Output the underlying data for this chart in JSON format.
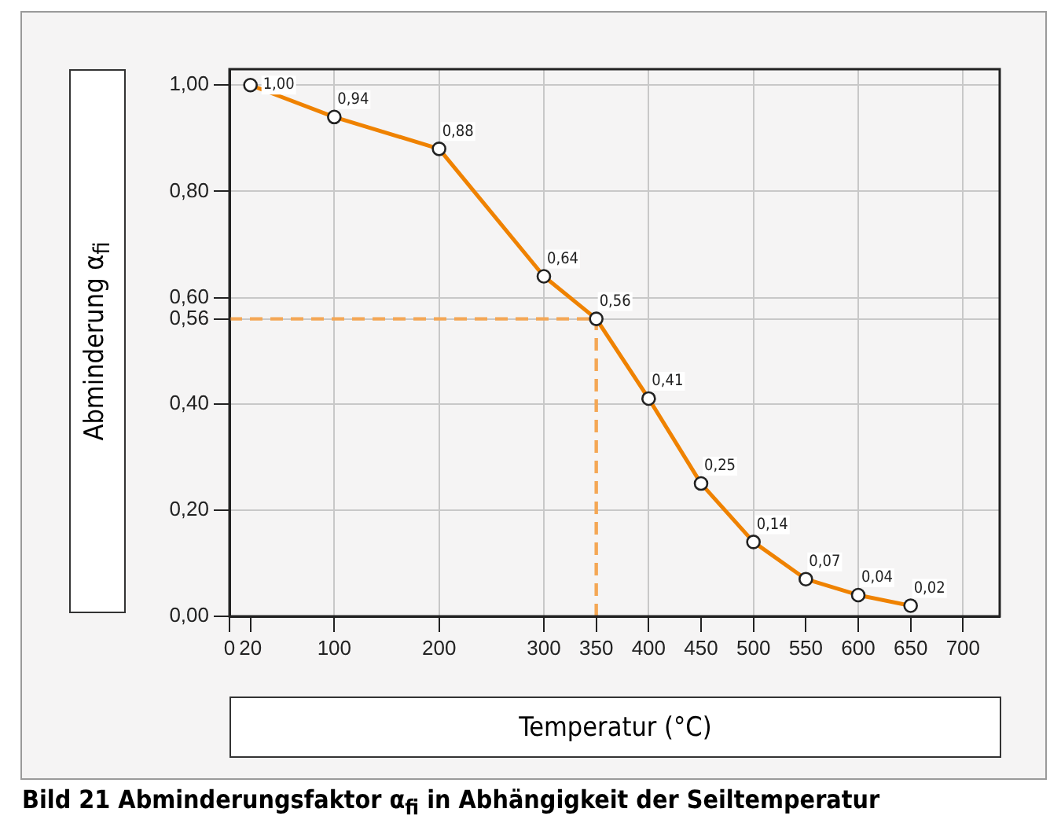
{
  "chart_data": {
    "type": "line",
    "title": "Bild 21  Abminderungsfaktor α$_{fi}$ in Abhängigkeit der Seiltemperatur",
    "xlabel": "Temperatur (°C)",
    "ylabel": "Abminderung α$_{fi}$",
    "x": [
      20,
      100,
      200,
      300,
      350,
      400,
      450,
      500,
      550,
      600,
      650
    ],
    "series": [
      {
        "color": "#ef8200",
        "values": [
          1.0,
          0.94,
          0.88,
          0.64,
          0.56,
          0.41,
          0.25,
          0.14,
          0.07,
          0.04,
          0.02
        ],
        "value_labels": [
          "1,00",
          "0,94",
          "0,88",
          "0,64",
          "0,56",
          "0,41",
          "0,25",
          "0,14",
          "0,07",
          "0,04",
          "0,02"
        ]
      }
    ],
    "xlim": [
      0,
      735
    ],
    "ylim": [
      0,
      1.03
    ],
    "xticks": [
      0,
      {
        "value": 20,
        "label": "20"
      },
      100,
      200,
      300,
      {
        "value": 350,
        "label": "350"
      },
      400,
      {
        "value": 450,
        "label": "450"
      },
      500,
      {
        "value": 550,
        "label": "550"
      },
      600,
      {
        "value": 650,
        "label": "650"
      },
      700
    ],
    "yticks": [
      {
        "value": 0,
        "label": "0,00"
      },
      {
        "value": 0.2,
        "label": "0,20"
      },
      {
        "value": 0.4,
        "label": "0,40"
      },
      {
        "value": 0.56,
        "label": "0,56"
      },
      {
        "value": 0.6,
        "label": "0,60"
      },
      {
        "value": 0.8,
        "label": "0,80"
      },
      {
        "value": 1,
        "label": "1,00"
      }
    ],
    "ref_lines": [
      {
        "axis": "y",
        "value": 0.56,
        "color": "#f4a755",
        "line_style": "dashed"
      },
      {
        "axis": "x",
        "value": 350,
        "color": "#f4a755",
        "line_style": "dashed"
      }
    ],
    "grid": true,
    "legend": false,
    "marker": "circle",
    "line_style": "solid"
  }
}
